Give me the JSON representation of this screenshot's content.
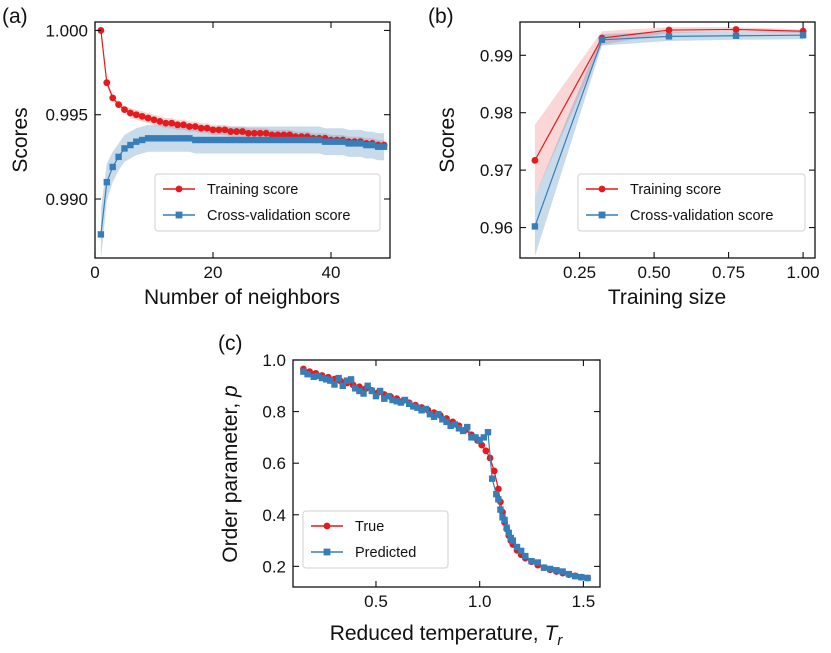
{
  "colors": {
    "training": "#e41a1c",
    "cv": "#377eb8",
    "training_band": "rgba(228,26,28,0.18)",
    "cv_band": "rgba(55,126,184,0.28)"
  },
  "chart_data": [
    {
      "id": "a",
      "panel_label": "(a)",
      "type": "line",
      "title": "",
      "xlabel": "Number of neighbors",
      "ylabel": "Scores",
      "xlim": [
        0,
        50
      ],
      "ylim": [
        0.9865,
        1.0005
      ],
      "xticks": [
        0,
        20,
        40
      ],
      "xtick_labels": [
        "0",
        "20",
        "40"
      ],
      "yticks": [
        0.99,
        0.995,
        1.0
      ],
      "ytick_labels": [
        "0.990",
        "0.995",
        "1.000"
      ],
      "legend_position": "lower-right",
      "series": [
        {
          "name": "Training score",
          "color_key": "training",
          "marker": "circle",
          "band_color_key": "training_band",
          "x": [
            1,
            2,
            3,
            4,
            5,
            6,
            7,
            8,
            9,
            10,
            11,
            12,
            13,
            14,
            15,
            16,
            17,
            18,
            19,
            20,
            21,
            22,
            23,
            24,
            25,
            26,
            27,
            28,
            29,
            30,
            31,
            32,
            33,
            34,
            35,
            36,
            37,
            38,
            39,
            40,
            41,
            42,
            43,
            44,
            45,
            46,
            47,
            48,
            49
          ],
          "y": [
            1.0,
            0.9969,
            0.996,
            0.9956,
            0.9953,
            0.9951,
            0.995,
            0.9949,
            0.9948,
            0.9947,
            0.9946,
            0.9945,
            0.9945,
            0.9944,
            0.9944,
            0.9943,
            0.9943,
            0.9942,
            0.9942,
            0.9941,
            0.9941,
            0.9941,
            0.994,
            0.994,
            0.994,
            0.9939,
            0.9939,
            0.9939,
            0.9939,
            0.9938,
            0.9938,
            0.9938,
            0.9938,
            0.9937,
            0.9937,
            0.9937,
            0.9936,
            0.9936,
            0.9936,
            0.9935,
            0.9935,
            0.9935,
            0.9934,
            0.9934,
            0.9934,
            0.9933,
            0.9933,
            0.9932,
            0.9932
          ],
          "band_halfwidth": [
            0.0,
            0.0002,
            0.0002,
            0.0002,
            0.0002,
            0.0003,
            0.0003,
            0.0003,
            0.0003,
            0.0003,
            0.0003,
            0.0003,
            0.0003,
            0.0003,
            0.0003,
            0.0003,
            0.0003,
            0.0003,
            0.0003,
            0.0003,
            0.0003,
            0.0003,
            0.0003,
            0.0003,
            0.0003,
            0.0003,
            0.0003,
            0.0003,
            0.0003,
            0.0003,
            0.0003,
            0.0003,
            0.0003,
            0.0003,
            0.0003,
            0.0003,
            0.0003,
            0.0003,
            0.0003,
            0.0003,
            0.0003,
            0.0003,
            0.0003,
            0.0003,
            0.0003,
            0.0003,
            0.0003,
            0.0003,
            0.0003
          ]
        },
        {
          "name": "Cross-validation score",
          "color_key": "cv",
          "marker": "square",
          "band_color_key": "cv_band",
          "x": [
            1,
            2,
            3,
            4,
            5,
            6,
            7,
            8,
            9,
            10,
            11,
            12,
            13,
            14,
            15,
            16,
            17,
            18,
            19,
            20,
            21,
            22,
            23,
            24,
            25,
            26,
            27,
            28,
            29,
            30,
            31,
            32,
            33,
            34,
            35,
            36,
            37,
            38,
            39,
            40,
            41,
            42,
            43,
            44,
            45,
            46,
            47,
            48,
            49
          ],
          "y": [
            0.9879,
            0.991,
            0.9919,
            0.9925,
            0.993,
            0.9932,
            0.9934,
            0.9935,
            0.9936,
            0.9936,
            0.9936,
            0.9936,
            0.9936,
            0.9936,
            0.9936,
            0.9936,
            0.9935,
            0.9935,
            0.9935,
            0.9935,
            0.9935,
            0.9935,
            0.9935,
            0.9935,
            0.9935,
            0.9935,
            0.9935,
            0.9935,
            0.9935,
            0.9935,
            0.9935,
            0.9935,
            0.9935,
            0.9935,
            0.9935,
            0.9935,
            0.9935,
            0.9935,
            0.9934,
            0.9934,
            0.9934,
            0.9934,
            0.9933,
            0.9933,
            0.9933,
            0.9932,
            0.9932,
            0.9931,
            0.9931
          ],
          "band_halfwidth": [
            0.0015,
            0.0011,
            0.0009,
            0.0008,
            0.0008,
            0.0008,
            0.0008,
            0.0008,
            0.0008,
            0.0008,
            0.0008,
            0.0008,
            0.0008,
            0.0008,
            0.0008,
            0.0008,
            0.0008,
            0.0008,
            0.0008,
            0.0008,
            0.0008,
            0.0008,
            0.0008,
            0.0008,
            0.0008,
            0.0008,
            0.0008,
            0.0008,
            0.0008,
            0.0008,
            0.0008,
            0.0008,
            0.0008,
            0.0008,
            0.0008,
            0.0008,
            0.0008,
            0.0008,
            0.0008,
            0.0008,
            0.0008,
            0.0008,
            0.0008,
            0.0008,
            0.0008,
            0.0008,
            0.0008,
            0.0008,
            0.0008
          ]
        }
      ]
    },
    {
      "id": "b",
      "panel_label": "(b)",
      "type": "line",
      "title": "",
      "xlabel": "Training size",
      "ylabel": "Scores",
      "xlim": [
        0.05,
        1.04
      ],
      "ylim": [
        0.9547,
        0.9958
      ],
      "xticks": [
        0.25,
        0.5,
        0.75,
        1.0
      ],
      "xtick_labels": [
        "0.25",
        "0.50",
        "0.75",
        "1.00"
      ],
      "yticks": [
        0.96,
        0.97,
        0.98,
        0.99
      ],
      "ytick_labels": [
        "0.96",
        "0.97",
        "0.98",
        "0.99"
      ],
      "legend_position": "lower-right",
      "series": [
        {
          "name": "Training score",
          "color_key": "training",
          "marker": "circle",
          "band_color_key": "training_band",
          "x": [
            0.1,
            0.325,
            0.55,
            0.775,
            1.0
          ],
          "y": [
            0.9717,
            0.993,
            0.9944,
            0.9945,
            0.9942
          ],
          "band_halfwidth": [
            0.0062,
            0.0012,
            0.0005,
            0.0004,
            0.0003
          ]
        },
        {
          "name": "Cross-validation score",
          "color_key": "cv",
          "marker": "square",
          "band_color_key": "cv_band",
          "x": [
            0.1,
            0.325,
            0.55,
            0.775,
            1.0
          ],
          "y": [
            0.9602,
            0.9927,
            0.9933,
            0.9934,
            0.9935
          ],
          "band_halfwidth": [
            0.0052,
            0.001,
            0.0008,
            0.0007,
            0.0007
          ]
        }
      ]
    },
    {
      "id": "c",
      "panel_label": "(c)",
      "type": "line",
      "title": "",
      "xlabel": "Reduced temperature, ",
      "xlabel_symbol": "T",
      "xlabel_subscript": "r",
      "ylabel": "Order parameter, ",
      "ylabel_symbol": "p",
      "xlim": [
        0.1,
        1.58
      ],
      "ylim": [
        0.12,
        1.0
      ],
      "xticks": [
        0.5,
        1.0,
        1.5
      ],
      "xtick_labels": [
        "0.5",
        "1.0",
        "1.5"
      ],
      "yticks": [
        0.2,
        0.4,
        0.6,
        0.8,
        1.0
      ],
      "ytick_labels": [
        "0.2",
        "0.4",
        "0.6",
        "0.8",
        "1.0"
      ],
      "legend_position": "lower-left",
      "series": [
        {
          "name": "True",
          "color_key": "training",
          "marker": "circle",
          "x": [
            0.15,
            0.18,
            0.21,
            0.24,
            0.27,
            0.3,
            0.33,
            0.36,
            0.39,
            0.42,
            0.45,
            0.48,
            0.51,
            0.54,
            0.57,
            0.6,
            0.63,
            0.66,
            0.69,
            0.72,
            0.75,
            0.78,
            0.81,
            0.84,
            0.87,
            0.9,
            0.93,
            0.96,
            0.99,
            1.01,
            1.03,
            1.05,
            1.07,
            1.09,
            1.1,
            1.11,
            1.12,
            1.13,
            1.14,
            1.15,
            1.16,
            1.18,
            1.2,
            1.22,
            1.25,
            1.28,
            1.31,
            1.34,
            1.37,
            1.4,
            1.43,
            1.46,
            1.49,
            1.52
          ],
          "y": [
            0.965,
            0.955,
            0.948,
            0.94,
            0.933,
            0.926,
            0.918,
            0.911,
            0.903,
            0.896,
            0.889,
            0.882,
            0.874,
            0.866,
            0.858,
            0.85,
            0.842,
            0.834,
            0.825,
            0.816,
            0.806,
            0.796,
            0.785,
            0.773,
            0.76,
            0.745,
            0.729,
            0.71,
            0.688,
            0.67,
            0.648,
            0.62,
            0.57,
            0.5,
            0.45,
            0.41,
            0.37,
            0.345,
            0.32,
            0.3,
            0.285,
            0.262,
            0.245,
            0.232,
            0.218,
            0.205,
            0.195,
            0.187,
            0.18,
            0.174,
            0.168,
            0.163,
            0.158,
            0.155
          ]
        },
        {
          "name": "Predicted",
          "color_key": "cv",
          "marker": "square",
          "x": [
            0.15,
            0.17,
            0.2,
            0.22,
            0.24,
            0.26,
            0.28,
            0.3,
            0.32,
            0.34,
            0.36,
            0.38,
            0.4,
            0.42,
            0.44,
            0.46,
            0.48,
            0.5,
            0.52,
            0.54,
            0.56,
            0.58,
            0.6,
            0.62,
            0.64,
            0.66,
            0.68,
            0.7,
            0.72,
            0.74,
            0.76,
            0.78,
            0.8,
            0.82,
            0.84,
            0.86,
            0.88,
            0.9,
            0.92,
            0.94,
            0.96,
            0.98,
            1.0,
            1.02,
            1.04,
            1.06,
            1.08,
            1.09,
            1.1,
            1.11,
            1.12,
            1.13,
            1.14,
            1.15,
            1.16,
            1.18,
            1.2,
            1.22,
            1.25,
            1.28,
            1.31,
            1.34,
            1.37,
            1.4,
            1.43,
            1.46,
            1.49,
            1.52
          ],
          "y": [
            0.955,
            0.945,
            0.935,
            0.938,
            0.93,
            0.925,
            0.92,
            0.905,
            0.93,
            0.9,
            0.92,
            0.925,
            0.89,
            0.88,
            0.87,
            0.9,
            0.88,
            0.86,
            0.88,
            0.85,
            0.86,
            0.845,
            0.84,
            0.835,
            0.845,
            0.83,
            0.82,
            0.815,
            0.805,
            0.81,
            0.79,
            0.78,
            0.79,
            0.77,
            0.76,
            0.745,
            0.75,
            0.735,
            0.725,
            0.74,
            0.7,
            0.7,
            0.69,
            0.7,
            0.72,
            0.54,
            0.48,
            0.46,
            0.42,
            0.39,
            0.38,
            0.35,
            0.33,
            0.31,
            0.3,
            0.275,
            0.26,
            0.24,
            0.22,
            0.215,
            0.195,
            0.19,
            0.185,
            0.18,
            0.17,
            0.162,
            0.158,
            0.155
          ]
        }
      ]
    }
  ]
}
